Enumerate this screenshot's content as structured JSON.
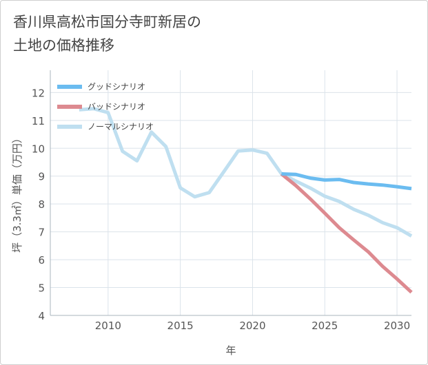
{
  "page": {
    "title_line1": "香川県高松市国分寺町新居の",
    "title_line2": "土地の価格推移"
  },
  "chart_data": {
    "type": "line",
    "xlabel": "年",
    "ylabel": "坪（3.3㎡）単価（万円）",
    "xlim": [
      2006,
      2031
    ],
    "ylim": [
      4,
      12.8
    ],
    "x_ticks": [
      2010,
      2015,
      2020,
      2025,
      2030
    ],
    "y_ticks": [
      4,
      5,
      6,
      7,
      8,
      9,
      10,
      11,
      12
    ],
    "grid": true,
    "legend_position": "top-left",
    "series": [
      {
        "name": "グッドシナリオ",
        "color": "#6bbcf0",
        "points": [
          [
            2022,
            9.08
          ],
          [
            2023,
            9.06
          ],
          [
            2024,
            8.93
          ],
          [
            2025,
            8.86
          ],
          [
            2026,
            8.88
          ],
          [
            2027,
            8.77
          ],
          [
            2028,
            8.72
          ],
          [
            2029,
            8.68
          ],
          [
            2030,
            8.62
          ],
          [
            2031,
            8.55
          ]
        ]
      },
      {
        "name": "バッドシナリオ",
        "color": "#dd8a90",
        "points": [
          [
            2022,
            9.08
          ],
          [
            2023,
            8.66
          ],
          [
            2024,
            8.18
          ],
          [
            2025,
            7.67
          ],
          [
            2026,
            7.15
          ],
          [
            2027,
            6.71
          ],
          [
            2028,
            6.29
          ],
          [
            2029,
            5.76
          ],
          [
            2030,
            5.31
          ],
          [
            2031,
            4.83
          ]
        ]
      },
      {
        "name": "ノーマルシナリオ",
        "color": "#bfdff0",
        "points": [
          [
            2008,
            11.38
          ],
          [
            2009,
            11.42
          ],
          [
            2010,
            11.28
          ],
          [
            2011,
            9.89
          ],
          [
            2012,
            9.55
          ],
          [
            2013,
            10.58
          ],
          [
            2014,
            10.06
          ],
          [
            2015,
            8.58
          ],
          [
            2016,
            8.26
          ],
          [
            2017,
            8.41
          ],
          [
            2018,
            9.15
          ],
          [
            2019,
            9.9
          ],
          [
            2020,
            9.94
          ],
          [
            2021,
            9.82
          ],
          [
            2022,
            9.08
          ],
          [
            2023,
            8.82
          ],
          [
            2024,
            8.57
          ],
          [
            2025,
            8.28
          ],
          [
            2026,
            8.09
          ],
          [
            2027,
            7.81
          ],
          [
            2028,
            7.6
          ],
          [
            2029,
            7.33
          ],
          [
            2030,
            7.15
          ],
          [
            2031,
            6.85
          ]
        ]
      }
    ]
  }
}
